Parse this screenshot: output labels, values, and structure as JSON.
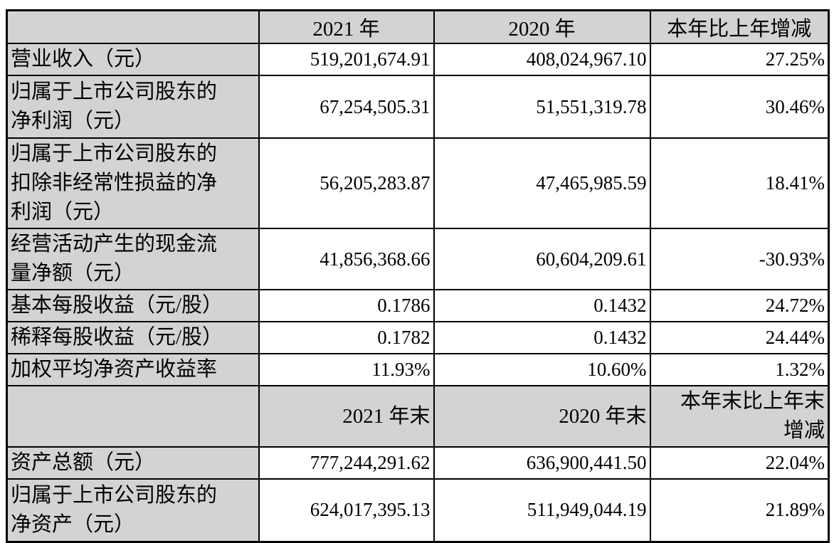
{
  "colors": {
    "header_and_label_bg": "#d3d3d3",
    "border": "#000000",
    "text": "#000000",
    "page_bg": "#ffffff"
  },
  "table": {
    "period_header": {
      "item": "",
      "y2021": "2021 年",
      "y2020": "2020 年",
      "change": "本年比上年增减"
    },
    "period_rows": [
      {
        "label": "营业收入（元）",
        "y2021": "519,201,674.91",
        "y2020": "408,024,967.10",
        "change": "27.25%"
      },
      {
        "label": "归属于上市公司股东的\n净利润（元）",
        "y2021": "67,254,505.31",
        "y2020": "51,551,319.78",
        "change": "30.46%"
      },
      {
        "label": "归属于上市公司股东的\n扣除非经常性损益的净\n利润（元）",
        "y2021": "56,205,283.87",
        "y2020": "47,465,985.59",
        "change": "18.41%"
      },
      {
        "label": "经营活动产生的现金流\n量净额（元）",
        "y2021": "41,856,368.66",
        "y2020": "60,604,209.61",
        "change": "-30.93%"
      },
      {
        "label": "基本每股收益（元/股）",
        "y2021": "0.1786",
        "y2020": "0.1432",
        "change": "24.72%"
      },
      {
        "label": "稀释每股收益（元/股）",
        "y2021": "0.1782",
        "y2020": "0.1432",
        "change": "24.44%"
      },
      {
        "label": "加权平均净资产收益率",
        "y2021": "11.93%",
        "y2020": "10.60%",
        "change": "1.32%"
      }
    ],
    "yearend_header": {
      "item": "",
      "y2021": "2021 年末",
      "y2020": "2020 年末",
      "change": "本年末比上年末\n增减"
    },
    "yearend_rows": [
      {
        "label": "资产总额（元）",
        "y2021": "777,244,291.62",
        "y2020": "636,900,441.50",
        "change": "22.04%"
      },
      {
        "label": "归属于上市公司股东的\n净资产（元）",
        "y2021": "624,017,395.13",
        "y2020": "511,949,044.19",
        "change": "21.89%"
      }
    ]
  }
}
